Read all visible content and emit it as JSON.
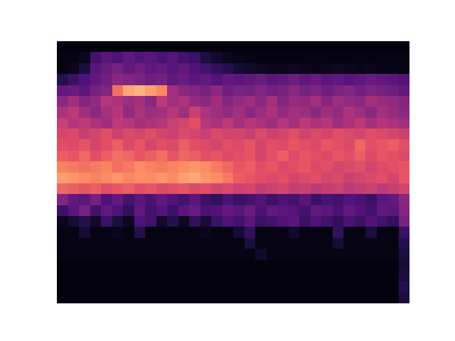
{
  "chart_data": {
    "type": "heatmap",
    "tick_labels": false,
    "zlim": [
      0,
      100
    ],
    "cells": [
      [
        2,
        2,
        2,
        2,
        2,
        2,
        2,
        2,
        2,
        2,
        2,
        2,
        2,
        2,
        2,
        2,
        2,
        2,
        2,
        2,
        2,
        2,
        2,
        2,
        2,
        2,
        2,
        2,
        2,
        2,
        2,
        2
      ],
      [
        3,
        3,
        5,
        22,
        28,
        25,
        30,
        26,
        28,
        24,
        27,
        22,
        20,
        12,
        8,
        5,
        4,
        3,
        3,
        3,
        3,
        3,
        3,
        3,
        3,
        3,
        3,
        3,
        3,
        3,
        3,
        3
      ],
      [
        3,
        5,
        12,
        28,
        32,
        35,
        30,
        33,
        29,
        31,
        27,
        30,
        25,
        22,
        18,
        15,
        10,
        8,
        6,
        5,
        5,
        6,
        5,
        4,
        5,
        6,
        5,
        4,
        5,
        4,
        4,
        3
      ],
      [
        15,
        20,
        25,
        30,
        34,
        40,
        38,
        36,
        33,
        35,
        30,
        32,
        28,
        30,
        26,
        30,
        28,
        30,
        32,
        28,
        30,
        33,
        29,
        31,
        28,
        30,
        27,
        29,
        31,
        30,
        28,
        26
      ],
      [
        30,
        32,
        28,
        35,
        38,
        70,
        82,
        85,
        80,
        75,
        45,
        40,
        38,
        35,
        40,
        33,
        36,
        35,
        38,
        34,
        36,
        40,
        35,
        37,
        33,
        36,
        38,
        34,
        37,
        35,
        33,
        30
      ],
      [
        40,
        45,
        38,
        42,
        50,
        48,
        44,
        46,
        40,
        52,
        45,
        48,
        42,
        40,
        45,
        38,
        42,
        44,
        40,
        46,
        38,
        43,
        41,
        45,
        39,
        44,
        42,
        40,
        46,
        43,
        41,
        38
      ],
      [
        48,
        52,
        45,
        40,
        46,
        50,
        42,
        48,
        44,
        46,
        50,
        45,
        55,
        48,
        44,
        42,
        46,
        40,
        44,
        48,
        42,
        46,
        44,
        40,
        45,
        42,
        48,
        44,
        40,
        46,
        43,
        40
      ],
      [
        55,
        50,
        52,
        48,
        45,
        52,
        50,
        46,
        48,
        50,
        55,
        58,
        62,
        50,
        48,
        52,
        46,
        50,
        48,
        44,
        50,
        46,
        52,
        48,
        50,
        45,
        48,
        52,
        46,
        50,
        48,
        45
      ],
      [
        58,
        60,
        55,
        58,
        62,
        56,
        60,
        58,
        62,
        58,
        56,
        60,
        58,
        55,
        60,
        57,
        58,
        55,
        60,
        56,
        58,
        62,
        57,
        60,
        58,
        62,
        60,
        58,
        62,
        60,
        58,
        56
      ],
      [
        62,
        60,
        64,
        58,
        62,
        66,
        60,
        64,
        58,
        62,
        60,
        66,
        62,
        60,
        58,
        62,
        60,
        64,
        58,
        62,
        60,
        64,
        62,
        60,
        64,
        62,
        60,
        68,
        62,
        64,
        66,
        62
      ],
      [
        66,
        64,
        68,
        62,
        66,
        70,
        68,
        64,
        66,
        70,
        64,
        68,
        66,
        62,
        64,
        60,
        62,
        64,
        58,
        62,
        66,
        60,
        64,
        62,
        60,
        64,
        62,
        66,
        60,
        64,
        62,
        60
      ],
      [
        74,
        72,
        70,
        72,
        74,
        70,
        72,
        76,
        74,
        72,
        74,
        76,
        78,
        76,
        72,
        68,
        64,
        66,
        62,
        64,
        60,
        62,
        64,
        60,
        62,
        58,
        60,
        62,
        58,
        60,
        62,
        64
      ],
      [
        80,
        78,
        76,
        74,
        76,
        78,
        75,
        77,
        76,
        78,
        76,
        80,
        82,
        78,
        76,
        72,
        66,
        64,
        62,
        60,
        62,
        58,
        60,
        62,
        58,
        60,
        56,
        58,
        60,
        62,
        58,
        64
      ],
      [
        68,
        66,
        64,
        66,
        62,
        64,
        66,
        62,
        64,
        60,
        62,
        64,
        60,
        62,
        58,
        60,
        56,
        58,
        54,
        56,
        58,
        54,
        56,
        52,
        54,
        56,
        52,
        54,
        56,
        52,
        55,
        58
      ],
      [
        38,
        30,
        28,
        35,
        25,
        30,
        22,
        28,
        24,
        30,
        26,
        22,
        28,
        20,
        18,
        24,
        20,
        22,
        26,
        20,
        24,
        22,
        28,
        20,
        24,
        22,
        26,
        24,
        20,
        28,
        30,
        40
      ],
      [
        20,
        28,
        35,
        22,
        30,
        25,
        18,
        30,
        22,
        26,
        20,
        28,
        32,
        24,
        26,
        30,
        28,
        32,
        24,
        30,
        28,
        26,
        22,
        30,
        28,
        24,
        30,
        26,
        22,
        30,
        28,
        38
      ],
      [
        5,
        10,
        15,
        8,
        20,
        12,
        6,
        25,
        22,
        8,
        15,
        6,
        18,
        10,
        20,
        25,
        22,
        28,
        20,
        22,
        26,
        28,
        20,
        25,
        22,
        18,
        24,
        20,
        26,
        22,
        18,
        35
      ],
      [
        3,
        3,
        10,
        3,
        3,
        5,
        3,
        15,
        3,
        3,
        3,
        3,
        3,
        5,
        3,
        3,
        10,
        18,
        3,
        3,
        3,
        8,
        3,
        3,
        3,
        18,
        3,
        3,
        12,
        3,
        3,
        20
      ],
      [
        3,
        3,
        3,
        3,
        3,
        3,
        3,
        3,
        3,
        3,
        3,
        3,
        3,
        3,
        3,
        3,
        3,
        12,
        3,
        3,
        3,
        3,
        3,
        3,
        3,
        10,
        3,
        3,
        3,
        3,
        3,
        15
      ],
      [
        3,
        3,
        3,
        3,
        3,
        3,
        3,
        3,
        3,
        3,
        3,
        3,
        3,
        3,
        3,
        3,
        3,
        3,
        8,
        3,
        3,
        3,
        3,
        3,
        3,
        3,
        3,
        3,
        3,
        3,
        3,
        12
      ],
      [
        2,
        2,
        2,
        2,
        2,
        2,
        2,
        2,
        2,
        2,
        2,
        2,
        2,
        2,
        2,
        2,
        2,
        2,
        2,
        2,
        2,
        2,
        2,
        2,
        2,
        2,
        2,
        2,
        2,
        2,
        2,
        10
      ],
      [
        2,
        2,
        2,
        2,
        2,
        2,
        2,
        2,
        2,
        2,
        2,
        2,
        2,
        2,
        2,
        2,
        2,
        2,
        2,
        2,
        2,
        2,
        2,
        2,
        2,
        2,
        2,
        2,
        2,
        2,
        2,
        12
      ],
      [
        2,
        2,
        2,
        2,
        2,
        2,
        2,
        2,
        2,
        2,
        2,
        2,
        2,
        2,
        2,
        2,
        2,
        2,
        2,
        2,
        2,
        2,
        2,
        2,
        2,
        2,
        2,
        2,
        2,
        2,
        2,
        15
      ],
      [
        2,
        2,
        2,
        2,
        2,
        2,
        2,
        2,
        2,
        2,
        2,
        2,
        2,
        2,
        2,
        2,
        2,
        2,
        2,
        2,
        2,
        2,
        2,
        2,
        2,
        2,
        2,
        2,
        2,
        2,
        2,
        12
      ]
    ]
  }
}
